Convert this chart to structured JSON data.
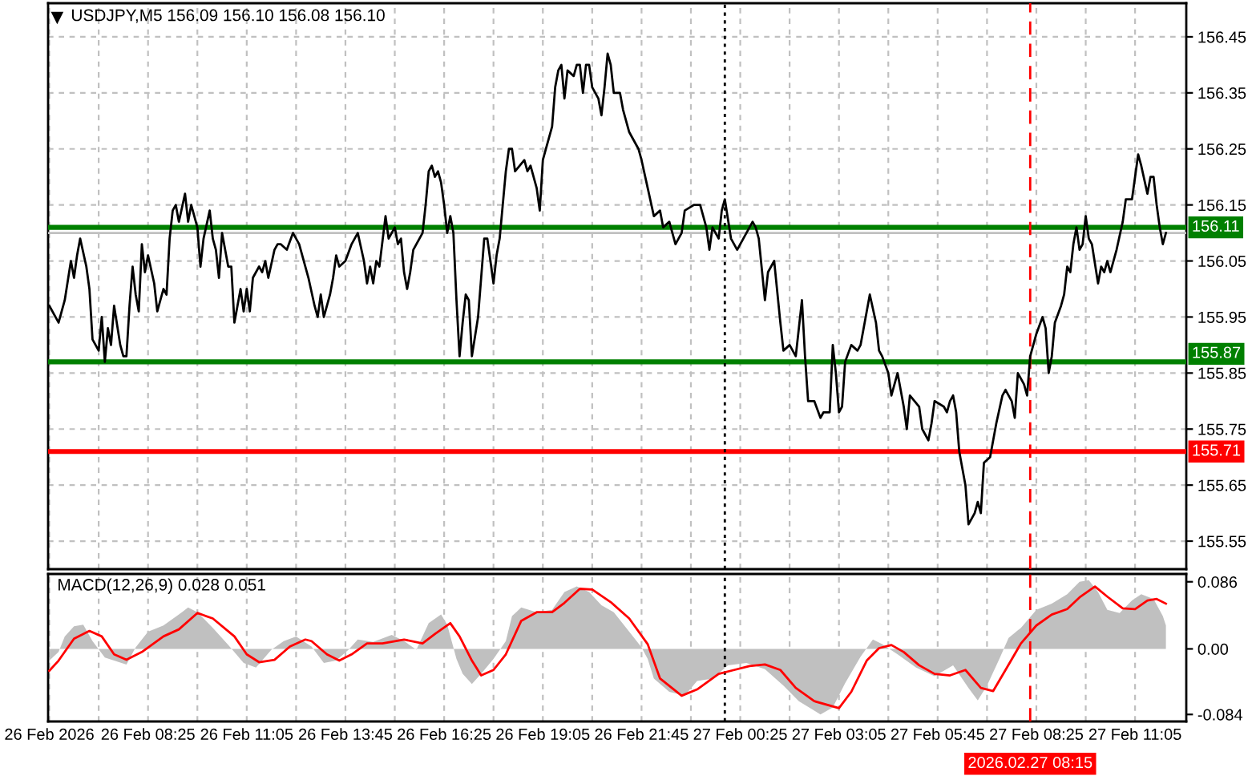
{
  "chart_data": [
    {
      "type": "line",
      "title": "USDJPY,M5 156.09 156.10 156.08 156.10",
      "series": [
        {
          "color": "#000000",
          "x": [
            "2026-02-26T05:45",
            "2026-02-26T06:00",
            "2026-02-26T06:10",
            "2026-02-26T06:20",
            "2026-02-26T06:25",
            "2026-02-26T06:30",
            "2026-02-26T06:35",
            "2026-02-26T06:45",
            "2026-02-26T06:50",
            "2026-02-26T06:55",
            "2026-02-26T07:05",
            "2026-02-26T07:10",
            "2026-02-26T07:15",
            "2026-02-26T07:20",
            "2026-02-26T07:25",
            "2026-02-26T07:30",
            "2026-02-26T07:40",
            "2026-02-26T07:45",
            "2026-02-26T07:50",
            "2026-02-26T07:55",
            "2026-02-26T08:00",
            "2026-02-26T08:05",
            "2026-02-26T08:10",
            "2026-02-26T08:15",
            "2026-02-26T08:20",
            "2026-02-26T08:25",
            "2026-02-26T08:35",
            "2026-02-26T08:40",
            "2026-02-26T08:50",
            "2026-02-26T08:55",
            "2026-02-26T09:00",
            "2026-02-26T09:05",
            "2026-02-26T09:10",
            "2026-02-26T09:15",
            "2026-02-26T09:25",
            "2026-02-26T09:30",
            "2026-02-26T09:35",
            "2026-02-26T09:45",
            "2026-02-26T09:50",
            "2026-02-26T09:55",
            "2026-02-26T10:05",
            "2026-02-26T10:10",
            "2026-02-26T10:15",
            "2026-02-26T10:20",
            "2026-02-26T10:25",
            "2026-02-26T10:35",
            "2026-02-26T10:40",
            "2026-02-26T10:45",
            "2026-02-26T10:50",
            "2026-02-26T10:55",
            "2026-02-26T11:00",
            "2026-02-26T11:05",
            "2026-02-26T11:10",
            "2026-02-26T11:15",
            "2026-02-26T11:25",
            "2026-02-26T11:30",
            "2026-02-26T11:35",
            "2026-02-26T11:40",
            "2026-02-26T11:50",
            "2026-02-26T11:55",
            "2026-02-26T12:00",
            "2026-02-26T12:10",
            "2026-02-26T12:20",
            "2026-02-26T12:30",
            "2026-02-26T12:40",
            "2026-02-26T12:45",
            "2026-02-26T12:55",
            "2026-02-26T13:00",
            "2026-02-26T13:05",
            "2026-02-26T13:10",
            "2026-02-26T13:20",
            "2026-02-26T13:25",
            "2026-02-26T13:30",
            "2026-02-26T13:35",
            "2026-02-26T13:45",
            "2026-02-26T13:55",
            "2026-02-26T14:00",
            "2026-02-26T14:05",
            "2026-02-26T14:15",
            "2026-02-26T14:20",
            "2026-02-26T14:25",
            "2026-02-26T14:30",
            "2026-02-26T14:35",
            "2026-02-26T14:40",
            "2026-02-26T14:50",
            "2026-02-26T14:55",
            "2026-02-26T15:05",
            "2026-02-26T15:10",
            "2026-02-26T15:15",
            "2026-02-26T15:20",
            "2026-02-26T15:25",
            "2026-02-26T15:30",
            "2026-02-26T15:35",
            "2026-02-26T15:50",
            "2026-02-26T15:55",
            "2026-02-26T16:00",
            "2026-02-26T16:05",
            "2026-02-26T16:10",
            "2026-02-26T16:15",
            "2026-02-26T16:20",
            "2026-02-26T16:25",
            "2026-02-26T16:30",
            "2026-02-26T16:35",
            "2026-02-26T16:40",
            "2026-02-26T16:45",
            "2026-02-26T16:50",
            "2026-02-26T16:55",
            "2026-02-26T17:00",
            "2026-02-26T17:05",
            "2026-02-26T17:10",
            "2026-02-26T17:20",
            "2026-02-26T17:25",
            "2026-02-26T17:30",
            "2026-02-26T17:35",
            "2026-02-26T17:40",
            "2026-02-26T17:45",
            "2026-02-26T17:50",
            "2026-02-26T17:55",
            "2026-02-26T18:00",
            "2026-02-26T18:05",
            "2026-02-26T18:10",
            "2026-02-26T18:15",
            "2026-02-26T18:20",
            "2026-02-26T18:35",
            "2026-02-26T18:40",
            "2026-02-26T18:45",
            "2026-02-26T18:55",
            "2026-02-26T19:00",
            "2026-02-26T19:05",
            "2026-02-26T19:10",
            "2026-02-26T19:20",
            "2026-02-26T19:25",
            "2026-02-26T19:30",
            "2026-02-26T19:35",
            "2026-02-26T19:40",
            "2026-02-26T19:45",
            "2026-02-26T19:55",
            "2026-02-26T20:00",
            "2026-02-26T20:05",
            "2026-02-26T20:10",
            "2026-02-26T20:15",
            "2026-02-26T20:20",
            "2026-02-26T20:25",
            "2026-02-26T20:35",
            "2026-02-26T20:40",
            "2026-02-26T20:45",
            "2026-02-26T20:50",
            "2026-02-26T20:55",
            "2026-02-26T21:00",
            "2026-02-26T21:10",
            "2026-02-26T21:15",
            "2026-02-26T21:25",
            "2026-02-26T21:30",
            "2026-02-26T21:40",
            "2026-02-26T21:45",
            "2026-02-26T21:55",
            "2026-02-26T22:05",
            "2026-02-26T22:15",
            "2026-02-26T22:20",
            "2026-02-26T22:30",
            "2026-02-26T22:40",
            "2026-02-26T22:50",
            "2026-02-26T22:55",
            "2026-02-26T23:10",
            "2026-02-26T23:20",
            "2026-02-26T23:30",
            "2026-02-26T23:35",
            "2026-02-26T23:40",
            "2026-02-26T23:50",
            "2026-02-26T23:55",
            "2026-02-27T00:00",
            "2026-02-27T00:10",
            "2026-02-27T00:15",
            "2026-02-27T00:20",
            "2026-02-27T00:30",
            "2026-02-27T00:45",
            "2026-02-27T00:50",
            "2026-02-27T00:55",
            "2026-02-27T01:05",
            "2026-02-27T01:10",
            "2026-02-27T01:20",
            "2026-02-27T01:30",
            "2026-02-27T01:35",
            "2026-02-27T01:45",
            "2026-02-27T01:55",
            "2026-02-27T02:00",
            "2026-02-27T02:05",
            "2026-02-27T02:10",
            "2026-02-27T02:15",
            "2026-02-27T02:25",
            "2026-02-27T02:35",
            "2026-02-27T02:40",
            "2026-02-27T02:50",
            "2026-02-27T02:55",
            "2026-02-27T03:00",
            "2026-02-27T03:05",
            "2026-02-27T03:10",
            "2026-02-27T03:15",
            "2026-02-27T03:25",
            "2026-02-27T03:35",
            "2026-02-27T03:40",
            "2026-02-27T03:50",
            "2026-02-27T03:55",
            "2026-02-27T04:05",
            "2026-02-27T04:10",
            "2026-02-27T04:15",
            "2026-02-27T04:25",
            "2026-02-27T04:30",
            "2026-02-27T04:40",
            "2026-02-27T04:45",
            "2026-02-27T04:50",
            "2026-02-27T04:55",
            "2026-02-27T05:00",
            "2026-02-27T05:15",
            "2026-02-27T05:20",
            "2026-02-27T05:30",
            "2026-02-27T05:35",
            "2026-02-27T05:40",
            "2026-02-27T05:55",
            "2026-02-27T06:00",
            "2026-02-27T06:05",
            "2026-02-27T06:10",
            "2026-02-27T06:15",
            "2026-02-27T06:20",
            "2026-02-27T06:25",
            "2026-02-27T06:30",
            "2026-02-27T06:35",
            "2026-02-27T06:45",
            "2026-02-27T06:50",
            "2026-02-27T06:55",
            "2026-02-27T07:00",
            "2026-02-27T07:10",
            "2026-02-27T07:20",
            "2026-02-27T07:30",
            "2026-02-27T07:35",
            "2026-02-27T07:45",
            "2026-02-27T07:50",
            "2026-02-27T07:55",
            "2026-02-27T08:05",
            "2026-02-27T08:10",
            "2026-02-27T08:15",
            "2026-02-27T08:25",
            "2026-02-27T08:35",
            "2026-02-27T08:40",
            "2026-02-27T08:45",
            "2026-02-27T08:50",
            "2026-02-27T08:55",
            "2026-02-27T09:05",
            "2026-02-27T09:10",
            "2026-02-27T09:15",
            "2026-02-27T09:20",
            "2026-02-27T09:25",
            "2026-02-27T09:30",
            "2026-02-27T09:35",
            "2026-02-27T09:40",
            "2026-02-27T09:45",
            "2026-02-27T09:50",
            "2026-02-27T09:55",
            "2026-02-27T10:05",
            "2026-02-27T10:10",
            "2026-02-27T10:15",
            "2026-02-27T10:20",
            "2026-02-27T10:25",
            "2026-02-27T10:35",
            "2026-02-27T10:45",
            "2026-02-27T10:50",
            "2026-02-27T11:00",
            "2026-02-27T11:05",
            "2026-02-27T11:10",
            "2026-02-27T11:15",
            "2026-02-27T11:25",
            "2026-02-27T11:30",
            "2026-02-27T11:35",
            "2026-02-27T11:40",
            "2026-02-27T11:45",
            "2026-02-27T11:50",
            "2026-02-27T11:55"
          ],
          "values": [
            155.97,
            155.94,
            155.98,
            156.05,
            156.02,
            156.06,
            156.09,
            156.04,
            156.0,
            155.91,
            155.89,
            155.95,
            155.87,
            155.93,
            155.9,
            155.97,
            155.9,
            155.88,
            155.88,
            155.97,
            156.04,
            155.99,
            155.96,
            156.08,
            156.03,
            156.06,
            156.01,
            155.96,
            156.0,
            155.99,
            156.09,
            156.14,
            156.15,
            156.12,
            156.17,
            156.12,
            156.15,
            156.11,
            156.04,
            156.09,
            156.14,
            156.09,
            156.07,
            156.02,
            156.1,
            156.04,
            156.04,
            155.94,
            155.97,
            156.0,
            155.96,
            156.0,
            155.96,
            156.02,
            156.04,
            156.03,
            156.05,
            156.02,
            156.07,
            156.08,
            156.08,
            156.07,
            156.1,
            156.08,
            156.04,
            156.02,
            155.97,
            155.95,
            155.99,
            155.95,
            155.99,
            156.02,
            156.06,
            156.04,
            156.05,
            156.08,
            156.09,
            156.1,
            156.05,
            156.01,
            156.04,
            156.01,
            156.05,
            156.04,
            156.13,
            156.09,
            156.11,
            156.08,
            156.09,
            156.03,
            156.0,
            156.03,
            156.07,
            156.1,
            156.15,
            156.21,
            156.22,
            156.2,
            156.21,
            156.19,
            156.15,
            156.1,
            156.13,
            156.1,
            155.98,
            155.88,
            155.94,
            155.99,
            155.98,
            155.88,
            155.95,
            156.02,
            156.09,
            156.09,
            156.05,
            156.01,
            156.06,
            156.09,
            156.15,
            156.21,
            156.25,
            156.25,
            156.21,
            156.23,
            156.21,
            156.22,
            156.18,
            156.14,
            156.23,
            156.25,
            156.29,
            156.36,
            156.39,
            156.4,
            156.34,
            156.39,
            156.38,
            156.4,
            156.4,
            156.35,
            156.4,
            156.4,
            156.36,
            156.34,
            156.31,
            156.36,
            156.42,
            156.4,
            156.35,
            156.35,
            156.32,
            156.28,
            156.27,
            156.25,
            156.23,
            156.18,
            156.13,
            156.14,
            156.11,
            156.12,
            156.08,
            156.1,
            156.14,
            156.15,
            156.15,
            156.11,
            156.07,
            156.11,
            156.09,
            156.14,
            156.16,
            156.09,
            156.08,
            156.07,
            156.09,
            156.12,
            156.11,
            156.09,
            155.98,
            156.03,
            156.05,
            155.94,
            155.89,
            155.9,
            155.88,
            155.93,
            155.98,
            155.88,
            155.8,
            155.8,
            155.77,
            155.78,
            155.78,
            155.9,
            155.85,
            155.78,
            155.79,
            155.87,
            155.9,
            155.89,
            155.9,
            155.96,
            155.99,
            155.94,
            155.89,
            155.88,
            155.85,
            155.81,
            155.85,
            155.82,
            155.79,
            155.75,
            155.81,
            155.79,
            155.75,
            155.73,
            155.76,
            155.8,
            155.79,
            155.78,
            155.8,
            155.81,
            155.78,
            155.71,
            155.68,
            155.65,
            155.58,
            155.6,
            155.62,
            155.6,
            155.69,
            155.7,
            155.76,
            155.81,
            155.82,
            155.8,
            155.77,
            155.85,
            155.83,
            155.81,
            155.88,
            155.92,
            155.95,
            155.93,
            155.85,
            155.88,
            155.94,
            155.97,
            155.99,
            156.04,
            156.03,
            156.08,
            156.11,
            156.07,
            156.08,
            156.13,
            156.09,
            156.08,
            156.01,
            156.04,
            156.03,
            156.05,
            156.03,
            156.07,
            156.12,
            156.16,
            156.16,
            156.2,
            156.24,
            156.22,
            156.17,
            156.2,
            156.2,
            156.15,
            156.11,
            156.08,
            156.1
          ]
        }
      ],
      "xlim": [
        "2026-02-26T05:43",
        "2026-02-27T12:28"
      ],
      "xticks": [
        {
          "value": "2026-02-26T05:45",
          "label": null
        },
        {
          "value": "2026-02-26T07:05",
          "label": null
        },
        {
          "value": "2026-02-26T08:25",
          "label": null
        },
        {
          "value": "2026-02-26T09:45",
          "label": null
        },
        {
          "value": "2026-02-26T11:05",
          "label": null
        },
        {
          "value": "2026-02-26T12:25",
          "label": null
        },
        {
          "value": "2026-02-26T13:45",
          "label": null
        },
        {
          "value": "2026-02-26T15:05",
          "label": null
        },
        {
          "value": "2026-02-26T16:25",
          "label": null
        },
        {
          "value": "2026-02-26T17:45",
          "label": null
        },
        {
          "value": "2026-02-26T19:05",
          "label": null
        },
        {
          "value": "2026-02-26T20:25",
          "label": null
        },
        {
          "value": "2026-02-26T21:45",
          "label": null
        },
        {
          "value": "2026-02-26T23:05",
          "label": null
        },
        {
          "value": "2026-02-27T00:25",
          "label": null
        },
        {
          "value": "2026-02-27T01:45",
          "label": null
        },
        {
          "value": "2026-02-27T03:05",
          "label": null
        },
        {
          "value": "2026-02-27T04:25",
          "label": null
        },
        {
          "value": "2026-02-27T05:45",
          "label": null
        },
        {
          "value": "2026-02-27T07:05",
          "label": null
        },
        {
          "value": "2026-02-27T08:25",
          "label": null
        },
        {
          "value": "2026-02-27T09:45",
          "label": null
        },
        {
          "value": "2026-02-27T11:05",
          "label": null
        }
      ],
      "ylim": [
        155.5,
        156.51
      ],
      "yticks": [
        155.55,
        155.65,
        155.75,
        155.85,
        155.95,
        156.05,
        156.15,
        156.25,
        156.35,
        156.45
      ],
      "tick_labels": "y",
      "grid": true,
      "ref_lines": [
        {
          "axis": "y",
          "value": 156.1,
          "color": "#c0c0c0"
        },
        {
          "axis": "y",
          "value": 156.11,
          "label": "156.11",
          "color": "#008000"
        },
        {
          "axis": "y",
          "value": 155.87,
          "label": "155.87",
          "color": "#008000"
        },
        {
          "axis": "y",
          "value": 155.71,
          "label": "155.71",
          "color": "#ff0000"
        },
        {
          "axis": "x",
          "value": "2026-02-27T00:00",
          "color": "#000000",
          "line_style": "dotted"
        },
        {
          "axis": "x",
          "value": "2026-02-27T08:15",
          "color": "#ff0000",
          "line_style": "dashed"
        }
      ]
    },
    {
      "type": "area",
      "title": "MACD(12,26,9) 0.028 0.051",
      "series": [
        {
          "type": "area",
          "color": "#c0c0c0",
          "x": [
            "2026-02-26T05:45",
            "2026-02-26T06:00",
            "2026-02-26T06:10",
            "2026-02-26T06:25",
            "2026-02-26T06:40",
            "2026-02-26T06:55",
            "2026-02-26T07:15",
            "2026-02-26T07:30",
            "2026-02-26T07:50",
            "2026-02-26T08:05",
            "2026-02-26T08:25",
            "2026-02-26T08:50",
            "2026-02-26T09:15",
            "2026-02-26T09:30",
            "2026-02-26T09:45",
            "2026-02-26T10:10",
            "2026-02-26T10:35",
            "2026-02-26T11:00",
            "2026-02-26T11:20",
            "2026-02-26T11:45",
            "2026-02-26T12:05",
            "2026-02-26T12:25",
            "2026-02-26T12:50",
            "2026-02-26T13:10",
            "2026-02-26T13:30",
            "2026-02-26T13:50",
            "2026-02-26T14:05",
            "2026-02-26T14:30",
            "2026-02-26T15:00",
            "2026-02-26T15:20",
            "2026-02-26T15:40",
            "2026-02-26T16:00",
            "2026-02-26T16:20",
            "2026-02-26T16:30",
            "2026-02-26T16:45",
            "2026-02-26T16:55",
            "2026-02-26T17:10",
            "2026-02-26T17:25",
            "2026-02-26T17:45",
            "2026-02-26T18:05",
            "2026-02-26T18:15",
            "2026-02-26T18:30",
            "2026-02-26T18:55",
            "2026-02-26T19:20",
            "2026-02-26T19:40",
            "2026-02-26T20:00",
            "2026-02-26T20:20",
            "2026-02-26T20:40",
            "2026-02-26T21:00",
            "2026-02-26T21:25",
            "2026-02-26T21:45",
            "2026-02-26T21:55",
            "2026-02-26T22:05",
            "2026-02-26T22:30",
            "2026-02-26T22:55",
            "2026-02-26T23:15",
            "2026-02-26T23:40",
            "2026-02-27T00:05",
            "2026-02-27T00:35",
            "2026-02-27T01:05",
            "2026-02-27T01:35",
            "2026-02-27T02:00",
            "2026-02-27T02:35",
            "2026-02-27T02:55",
            "2026-02-27T03:15",
            "2026-02-27T03:40",
            "2026-02-27T04:00",
            "2026-02-27T04:15",
            "2026-02-27T04:40",
            "2026-02-27T05:10",
            "2026-02-27T05:40",
            "2026-02-27T06:10",
            "2026-02-27T06:35",
            "2026-02-27T06:50",
            "2026-02-27T07:05",
            "2026-02-27T07:25",
            "2026-02-27T07:40",
            "2026-02-27T08:00",
            "2026-02-27T08:25",
            "2026-02-27T08:50",
            "2026-02-27T09:15",
            "2026-02-27T09:35",
            "2026-02-27T09:50",
            "2026-02-27T10:05",
            "2026-02-27T10:20",
            "2026-02-27T10:40",
            "2026-02-27T11:00",
            "2026-02-27T11:15",
            "2026-02-27T11:35",
            "2026-02-27T11:50",
            "2026-02-27T11:55"
          ],
          "values": [
            -0.015,
            -0.004,
            0.016,
            0.029,
            0.031,
            0.01,
            -0.011,
            -0.015,
            -0.02,
            0.002,
            0.022,
            0.03,
            0.044,
            0.053,
            0.047,
            0.027,
            0.005,
            -0.018,
            -0.024,
            -0.001,
            0.01,
            0.016,
            0.003,
            -0.018,
            -0.015,
            -0.001,
            0.012,
            0.009,
            0.018,
            0.01,
            -0.001,
            0.033,
            0.044,
            0.031,
            -0.013,
            -0.032,
            -0.045,
            -0.032,
            -0.013,
            0.01,
            0.042,
            0.053,
            0.047,
            0.05,
            0.073,
            0.08,
            0.073,
            0.056,
            0.047,
            0.022,
            0.002,
            -0.013,
            -0.038,
            -0.055,
            -0.06,
            -0.041,
            -0.038,
            -0.021,
            -0.018,
            -0.026,
            -0.047,
            -0.067,
            -0.084,
            -0.075,
            -0.044,
            -0.01,
            0.012,
            0.006,
            -0.007,
            -0.024,
            -0.035,
            -0.021,
            -0.05,
            -0.066,
            -0.047,
            -0.013,
            0.014,
            0.027,
            0.05,
            0.058,
            0.07,
            0.086,
            0.088,
            0.073,
            0.05,
            0.046,
            0.062,
            0.07,
            0.064,
            0.042,
            0.03
          ]
        },
        {
          "type": "line",
          "color": "#ff0000",
          "x": [
            "2026-02-26T05:45",
            "2026-02-26T06:00",
            "2026-02-26T06:25",
            "2026-02-26T06:50",
            "2026-02-26T07:10",
            "2026-02-26T07:30",
            "2026-02-26T07:50",
            "2026-02-26T08:15",
            "2026-02-26T08:50",
            "2026-02-26T09:15",
            "2026-02-26T09:45",
            "2026-02-26T10:10",
            "2026-02-26T10:45",
            "2026-02-26T11:05",
            "2026-02-26T11:25",
            "2026-02-26T11:50",
            "2026-02-26T12:15",
            "2026-02-26T12:40",
            "2026-02-26T12:50",
            "2026-02-26T13:15",
            "2026-02-26T13:35",
            "2026-02-26T13:55",
            "2026-02-26T14:20",
            "2026-02-26T14:45",
            "2026-02-26T15:20",
            "2026-02-26T15:50",
            "2026-02-26T16:10",
            "2026-02-26T16:35",
            "2026-02-26T16:50",
            "2026-02-26T17:10",
            "2026-02-26T17:25",
            "2026-02-26T17:45",
            "2026-02-26T18:05",
            "2026-02-26T18:30",
            "2026-02-26T18:55",
            "2026-02-26T19:20",
            "2026-02-26T19:40",
            "2026-02-26T20:05",
            "2026-02-26T20:25",
            "2026-02-26T20:55",
            "2026-02-26T21:25",
            "2026-02-26T21:55",
            "2026-02-26T22:15",
            "2026-02-26T22:50",
            "2026-02-26T23:15",
            "2026-02-26T23:50",
            "2026-02-27T00:15",
            "2026-02-27T00:40",
            "2026-02-27T01:05",
            "2026-02-27T01:30",
            "2026-02-27T01:55",
            "2026-02-27T02:25",
            "2026-02-27T03:05",
            "2026-02-27T03:25",
            "2026-02-27T03:50",
            "2026-02-27T04:10",
            "2026-02-27T04:30",
            "2026-02-27T04:50",
            "2026-02-27T05:15",
            "2026-02-27T05:40",
            "2026-02-27T06:05",
            "2026-02-27T06:30",
            "2026-02-27T06:55",
            "2026-02-27T07:15",
            "2026-02-27T07:35",
            "2026-02-27T08:00",
            "2026-02-27T08:25",
            "2026-02-27T08:50",
            "2026-02-27T09:15",
            "2026-02-27T09:35",
            "2026-02-27T10:00",
            "2026-02-27T10:20",
            "2026-02-27T10:45",
            "2026-02-27T11:05",
            "2026-02-27T11:25",
            "2026-02-27T11:40",
            "2026-02-27T11:55"
          ],
          "values": [
            -0.028,
            -0.015,
            0.013,
            0.023,
            0.016,
            -0.007,
            -0.014,
            -0.004,
            0.016,
            0.025,
            0.046,
            0.039,
            0.016,
            -0.007,
            -0.017,
            -0.014,
            0.003,
            0.012,
            0.01,
            -0.007,
            -0.015,
            -0.007,
            0.007,
            0.007,
            0.012,
            0.007,
            0.019,
            0.033,
            0.016,
            -0.015,
            -0.034,
            -0.027,
            -0.007,
            0.036,
            0.047,
            0.047,
            0.059,
            0.077,
            0.076,
            0.06,
            0.039,
            0.006,
            -0.038,
            -0.06,
            -0.052,
            -0.032,
            -0.027,
            -0.022,
            -0.02,
            -0.027,
            -0.05,
            -0.067,
            -0.076,
            -0.055,
            -0.015,
            0.001,
            0.005,
            -0.004,
            -0.021,
            -0.032,
            -0.034,
            -0.027,
            -0.05,
            -0.054,
            -0.027,
            0.007,
            0.03,
            0.044,
            0.051,
            0.066,
            0.08,
            0.067,
            0.052,
            0.051,
            0.062,
            0.064,
            0.058
          ]
        }
      ],
      "xlim": [
        "2026-02-26T05:43",
        "2026-02-27T12:28"
      ],
      "xticks": [
        {
          "value": "2026-02-26T05:45",
          "label": "26 Feb 2026"
        },
        {
          "value": "2026-02-26T07:05",
          "label": null
        },
        {
          "value": "2026-02-26T08:25",
          "label": "26 Feb 08:25"
        },
        {
          "value": "2026-02-26T09:45",
          "label": null
        },
        {
          "value": "2026-02-26T11:05",
          "label": "26 Feb 11:05"
        },
        {
          "value": "2026-02-26T12:25",
          "label": null
        },
        {
          "value": "2026-02-26T13:45",
          "label": "26 Feb 13:45"
        },
        {
          "value": "2026-02-26T15:05",
          "label": null
        },
        {
          "value": "2026-02-26T16:25",
          "label": "26 Feb 16:25"
        },
        {
          "value": "2026-02-26T17:45",
          "label": null
        },
        {
          "value": "2026-02-26T19:05",
          "label": "26 Feb 19:05"
        },
        {
          "value": "2026-02-26T20:25",
          "label": null
        },
        {
          "value": "2026-02-26T21:45",
          "label": "26 Feb 21:45"
        },
        {
          "value": "2026-02-26T23:05",
          "label": null
        },
        {
          "value": "2026-02-27T00:25",
          "label": "27 Feb 00:25"
        },
        {
          "value": "2026-02-27T01:45",
          "label": null
        },
        {
          "value": "2026-02-27T03:05",
          "label": "27 Feb 03:05"
        },
        {
          "value": "2026-02-27T04:25",
          "label": null
        },
        {
          "value": "2026-02-27T05:45",
          "label": "27 Feb 05:45"
        },
        {
          "value": "2026-02-27T07:05",
          "label": null
        },
        {
          "value": "2026-02-27T08:25",
          "label": "27 Feb 08:25"
        },
        {
          "value": "2026-02-27T09:45",
          "label": null
        },
        {
          "value": "2026-02-27T11:05",
          "label": "27 Feb 11:05"
        }
      ],
      "ylim": [
        -0.093,
        0.096
      ],
      "yticks": [
        -0.084,
        {
          "value": 0,
          "label": "0.00"
        },
        0.086
      ],
      "grid": "x",
      "ref_lines": [
        {
          "axis": "x",
          "value": "2026-02-27T00:00",
          "color": "#000000",
          "line_style": "dotted"
        },
        {
          "axis": "x",
          "value": "2026-02-27T08:15",
          "label": "2026.02.27 08:15",
          "color": "#ff0000",
          "line_style": "dashed"
        }
      ]
    }
  ]
}
